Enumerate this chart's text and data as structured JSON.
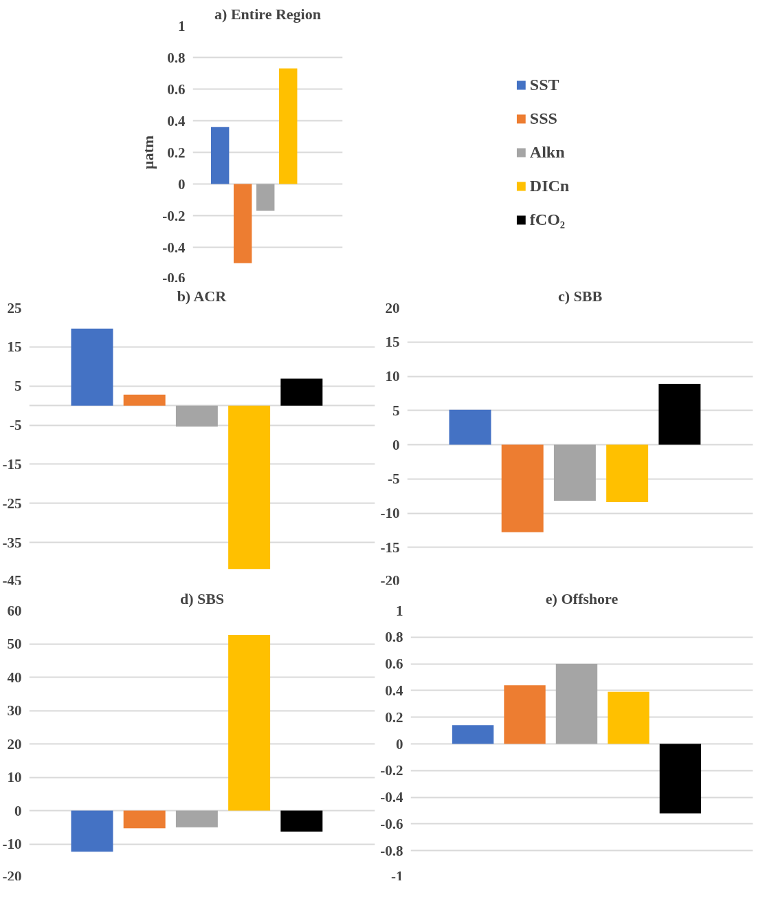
{
  "chart_data": [
    {
      "type": "bar",
      "title": "a) Entire Region",
      "ylabel": "µatm",
      "categories": [
        null
      ],
      "ylim": [
        -0.6,
        1
      ],
      "yticks": [
        -0.6,
        -0.4,
        -0.2,
        0,
        0.2,
        0.4,
        0.6,
        0.8,
        1
      ],
      "grid": "y",
      "legend": "right",
      "series": [
        {
          "name": "SST",
          "color": "#4472c4",
          "values": [
            0.36
          ]
        },
        {
          "name": "SSS",
          "color": "#ed7d31",
          "values": [
            -0.5
          ]
        },
        {
          "name": "Alkn",
          "color": "#a5a5a5",
          "values": [
            -0.17
          ]
        },
        {
          "name": "DICn",
          "color": "#ffc000",
          "values": [
            0.73
          ]
        },
        {
          "name": "fCO₂",
          "color": "#000000",
          "values": [
            null
          ]
        }
      ]
    },
    {
      "type": "bar",
      "title": "b) ACR",
      "categories": [
        null
      ],
      "ylim": [
        -45,
        25
      ],
      "yticks": [
        -45,
        -35,
        -25,
        -15,
        -5,
        {
          "value": 0,
          "label": null
        },
        5,
        15,
        25
      ],
      "grid": "y",
      "series": [
        {
          "color": "#4472c4",
          "values": [
            19.7
          ]
        },
        {
          "color": "#ed7d31",
          "values": [
            2.8
          ]
        },
        {
          "color": "#a5a5a5",
          "values": [
            -5.4
          ]
        },
        {
          "color": "#ffc000",
          "values": [
            -41.8
          ]
        },
        {
          "color": "#000000",
          "values": [
            6.9
          ]
        }
      ]
    },
    {
      "type": "bar",
      "title": "c) SBB",
      "categories": [
        null
      ],
      "ylim": [
        -20,
        20
      ],
      "yticks": [
        -20,
        -15,
        -10,
        -5,
        0,
        5,
        10,
        15,
        20
      ],
      "grid": "y",
      "series": [
        {
          "color": "#4472c4",
          "values": [
            5.1
          ]
        },
        {
          "color": "#ed7d31",
          "values": [
            -12.8
          ]
        },
        {
          "color": "#a5a5a5",
          "values": [
            -8.2
          ]
        },
        {
          "color": "#ffc000",
          "values": [
            -8.4
          ]
        },
        {
          "color": "#000000",
          "values": [
            8.9
          ]
        }
      ]
    },
    {
      "type": "bar",
      "title": "d) SBS",
      "categories": [
        null
      ],
      "ylim": [
        -20,
        60
      ],
      "yticks": [
        -20,
        -10,
        0,
        10,
        20,
        30,
        40,
        50,
        60
      ],
      "grid": "y",
      "series": [
        {
          "color": "#4472c4",
          "values": [
            -12.3
          ]
        },
        {
          "color": "#ed7d31",
          "values": [
            -5.3
          ]
        },
        {
          "color": "#a5a5a5",
          "values": [
            -5.0
          ]
        },
        {
          "color": "#ffc000",
          "values": [
            52.7
          ]
        },
        {
          "color": "#000000",
          "values": [
            -6.3
          ]
        }
      ]
    },
    {
      "type": "bar",
      "title": "e) Offshore",
      "categories": [
        null
      ],
      "ylim": [
        -1,
        1
      ],
      "yticks": [
        -1,
        -0.8,
        -0.6,
        -0.4,
        -0.2,
        0,
        0.2,
        0.4,
        0.6,
        0.8,
        1
      ],
      "grid": "y",
      "series": [
        {
          "color": "#4472c4",
          "values": [
            0.14
          ]
        },
        {
          "color": "#ed7d31",
          "values": [
            0.44
          ]
        },
        {
          "color": "#a5a5a5",
          "values": [
            0.6
          ]
        },
        {
          "color": "#ffc000",
          "values": [
            0.39
          ]
        },
        {
          "color": "#000000",
          "values": [
            -0.52
          ]
        }
      ]
    }
  ]
}
